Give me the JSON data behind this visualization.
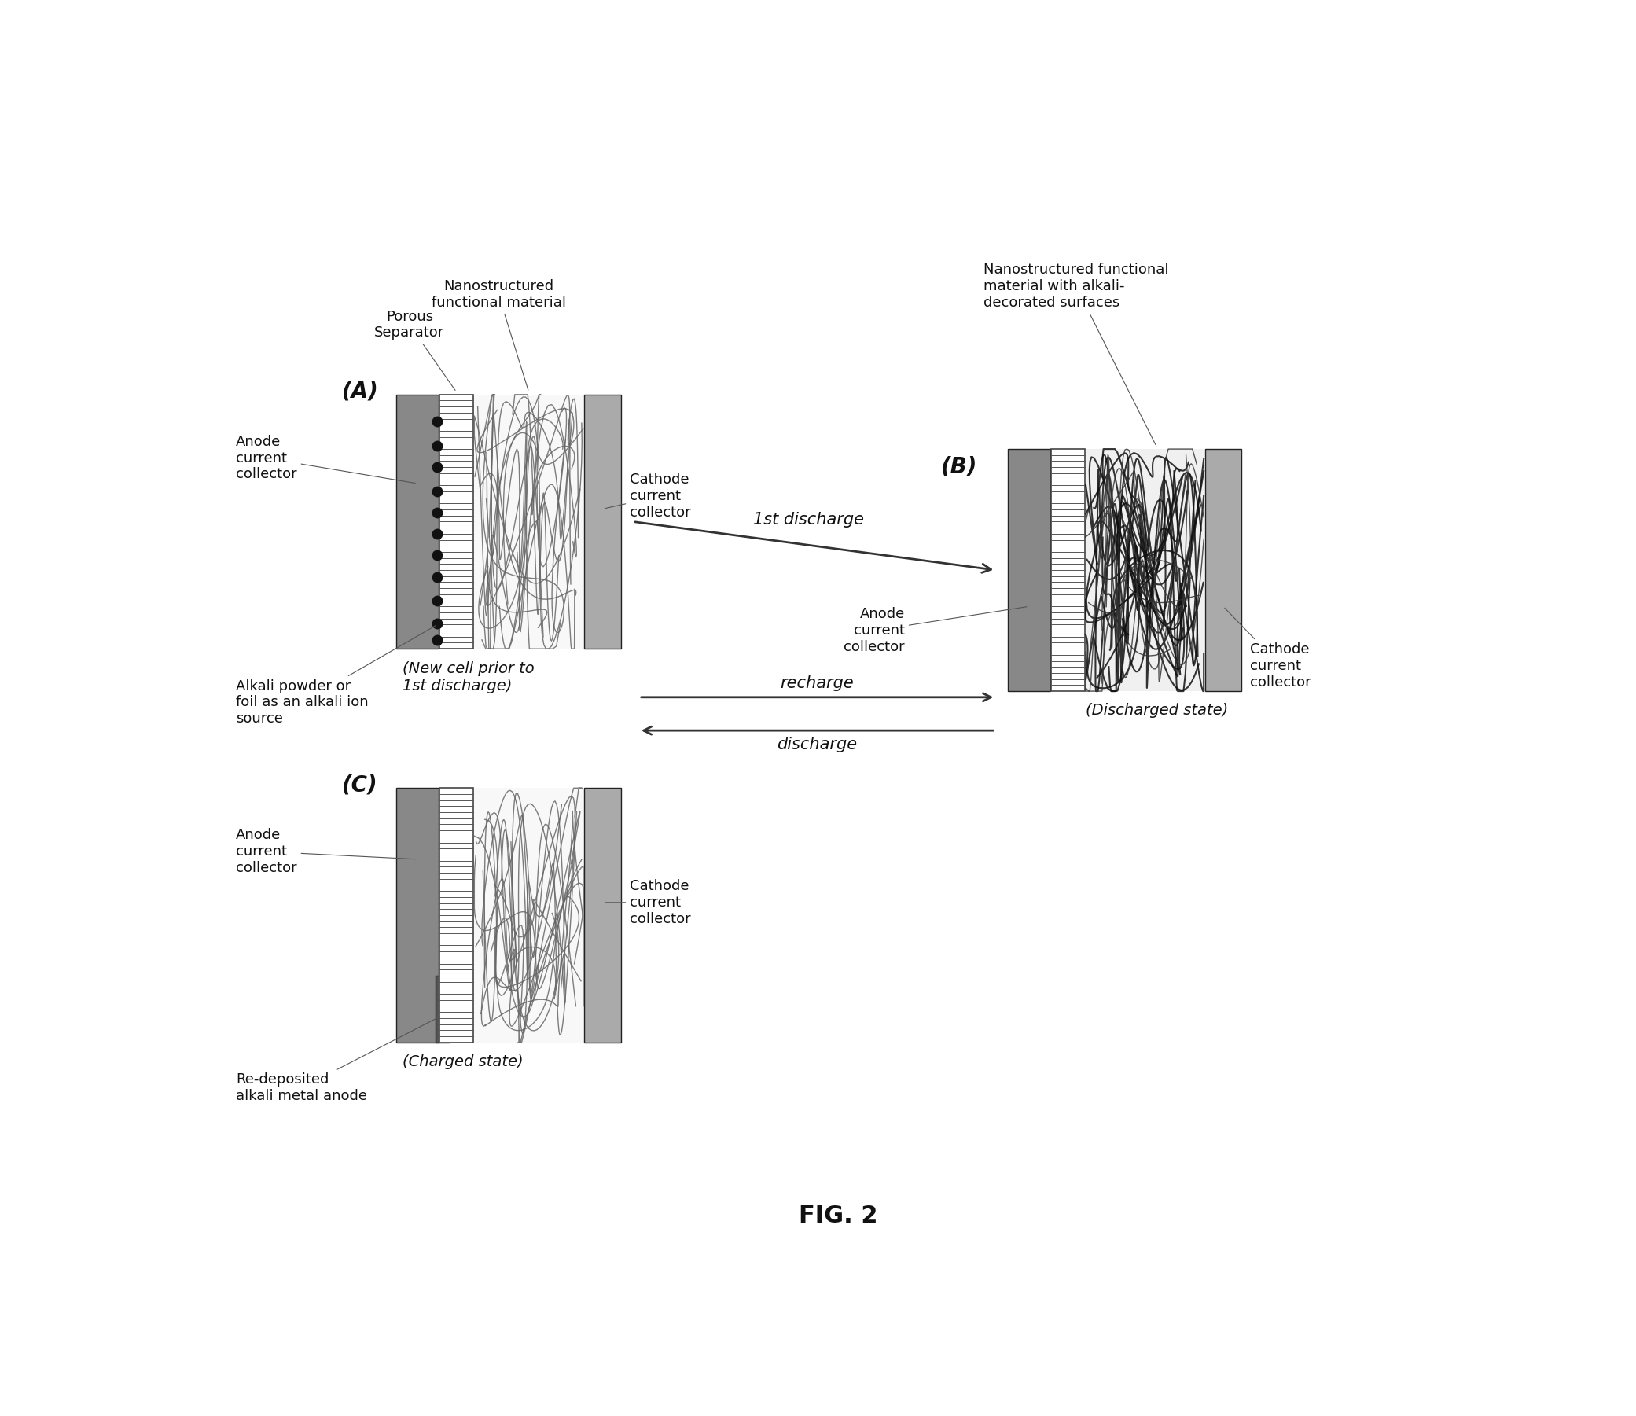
{
  "bg_color": "#ffffff",
  "text_color": "#111111",
  "anode_color": "#777777",
  "cathode_color": "#aaaaaa",
  "sep_line_color": "#555555",
  "nano_color_A": "#666666",
  "nano_color_B": "#111111",
  "nano_color_C": "#666666",
  "dot_color": "#111111",
  "arrow_color": "#333333",
  "panel_A_label": "(A)",
  "panel_B_label": "(B)",
  "panel_C_label": "(C)",
  "new_cell_text": "(New cell prior to\n1st discharge)",
  "discharged_text": "(Discharged state)",
  "charged_text": "(Charged state)",
  "arrow1_text": "1st discharge",
  "arrow2_text_top": "recharge",
  "arrow2_text_bot": "discharge",
  "fig_label": "FIG. 2",
  "porous_sep_label": "Porous\nSeparator",
  "nano_func_label": "Nanostructured\nfunctional material",
  "cathode_label": "Cathode\ncurrent\ncollector",
  "anode_label_A": "Anode\ncurrent\ncollector",
  "alkali_label": "Alkali powder or\nfoil as an alkali ion\nsource",
  "nano_B_label": "Nanostructured functional\nmaterial with alkali-\ndecorated surfaces",
  "anode_label_B": "Anode\ncurrent\ncollector",
  "cathode_label_B": "Cathode\ncurrent\ncollector",
  "anode_label_C": "Anode\ncurrent\ncollector",
  "cathode_label_C": "Cathode\ncurrent\ncollector",
  "redep_label": "Re-deposited\nalkali metal anode"
}
